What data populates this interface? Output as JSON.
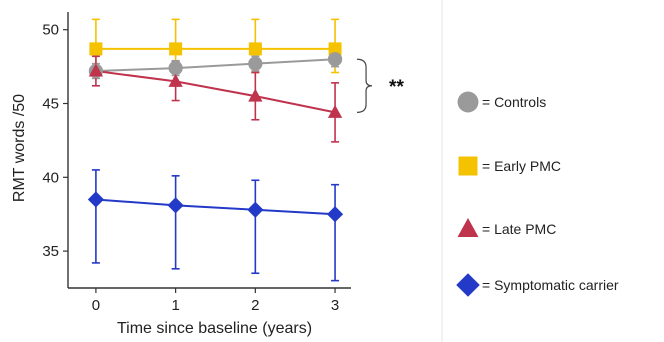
{
  "chart_data": {
    "type": "line",
    "xlabel": "Time since baseline (years)",
    "ylabel": "RMT words /50",
    "x": [
      0,
      1,
      2,
      3
    ],
    "xticks": [
      "0",
      "1",
      "2",
      "3"
    ],
    "yticks": [
      "35",
      "40",
      "45",
      "50"
    ],
    "xlim": [
      -0.35,
      3.2
    ],
    "ylim": [
      32.5,
      51.2
    ],
    "grid": false,
    "legend_position": "right",
    "series": [
      {
        "name": "= Early PMC",
        "color": "#f5c200",
        "marker": "square",
        "values": [
          48.7,
          48.7,
          48.7,
          48.7
        ],
        "err_low": [
          1.6,
          1.6,
          1.6,
          1.6
        ],
        "err_high": [
          2.0,
          2.0,
          2.0,
          2.0
        ]
      },
      {
        "name": "= Controls",
        "color": "#9a9a9a",
        "marker": "circle",
        "values": [
          47.2,
          47.4,
          47.7,
          48.0
        ],
        "err_low": [
          0.5,
          0.5,
          0.5,
          0.5
        ],
        "err_high": [
          0.5,
          0.5,
          0.5,
          0.5
        ]
      },
      {
        "name": "= Late PMC",
        "color": "#c0334d",
        "marker": "triangle",
        "values": [
          47.2,
          46.5,
          45.5,
          44.4
        ],
        "err_low": [
          1.0,
          1.3,
          1.6,
          2.0
        ],
        "err_high": [
          1.0,
          1.3,
          1.6,
          2.0
        ]
      },
      {
        "name": "= Symptomatic carrier",
        "color": "#2339c8",
        "marker": "diamond",
        "values": [
          38.5,
          38.1,
          37.8,
          37.5
        ],
        "err_low": [
          4.3,
          4.3,
          4.3,
          4.5
        ],
        "err_high": [
          2.0,
          2.0,
          2.0,
          2.0
        ]
      }
    ],
    "legend_order": [
      1,
      0,
      2,
      3
    ],
    "annotations": [
      {
        "text": "**",
        "between": [
          "= Controls",
          "= Late PMC"
        ],
        "at_x": 3
      }
    ]
  }
}
